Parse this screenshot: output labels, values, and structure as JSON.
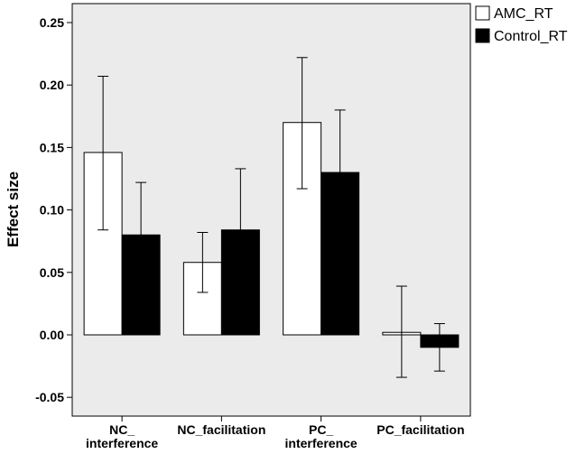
{
  "chart_data": {
    "type": "bar",
    "title": "",
    "xlabel": "",
    "ylabel": "Effect size",
    "ylim": [
      -0.06,
      0.26
    ],
    "yticks": [
      -0.05,
      0.0,
      0.05,
      0.1,
      0.15,
      0.2,
      0.25
    ],
    "ytick_labels": [
      "-0.05",
      "0.00",
      "0.05",
      "0.10",
      "0.15",
      "0.20",
      "0.25"
    ],
    "categories": [
      [
        "NC_",
        "interference"
      ],
      [
        "NC_facilitation"
      ],
      [
        "PC_",
        "interference"
      ],
      [
        "PC_facilitation"
      ]
    ],
    "series": [
      {
        "name": "AMC_RT",
        "color": "#ffffff",
        "values": [
          0.146,
          0.058,
          0.17,
          0.002
        ],
        "err_low": [
          0.084,
          0.034,
          0.117,
          -0.034
        ],
        "err_high": [
          0.207,
          0.082,
          0.222,
          0.039
        ]
      },
      {
        "name": "Control_RT",
        "color": "#000000",
        "values": [
          0.08,
          0.084,
          0.13,
          -0.01
        ],
        "err_low": [
          0.038,
          0.034,
          0.08,
          -0.029
        ],
        "err_high": [
          0.122,
          0.133,
          0.18,
          0.009
        ]
      }
    ],
    "legend_position": "top-right",
    "background": "#ebebeb",
    "grid": false
  }
}
